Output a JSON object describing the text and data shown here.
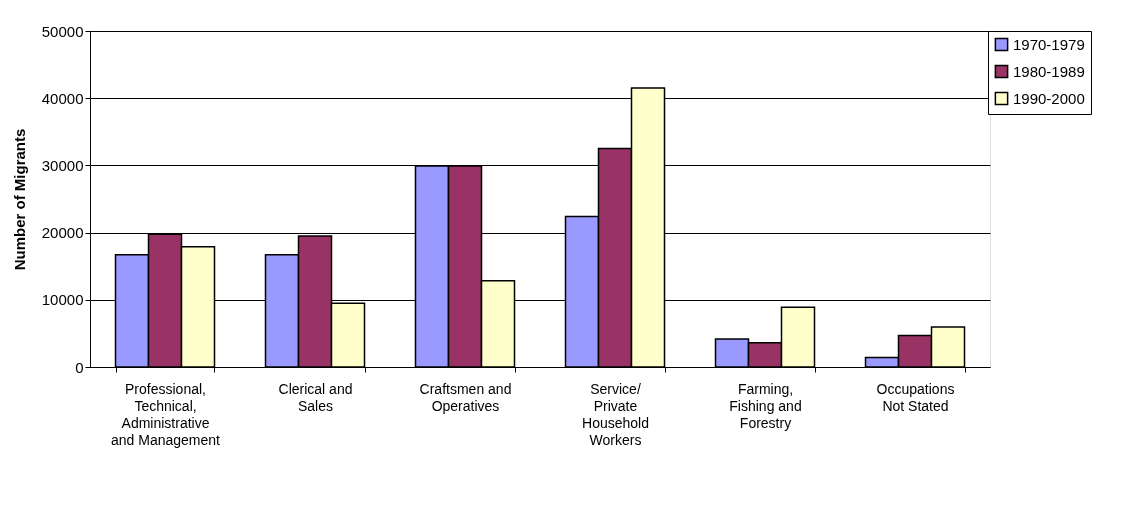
{
  "chart_data": {
    "type": "bar",
    "ylabel": "Number of Migrants",
    "categories": [
      "Professional, Technical, Administrative and Management",
      "Clerical and Sales",
      "Craftsmen and Operatives",
      "Service/ Private Household Workers",
      "Farming, Fishing and Forestry",
      "Occupations Not Stated"
    ],
    "series": [
      {
        "name": "1970-1979",
        "color": "#9999ff",
        "values": [
          16700,
          16700,
          29900,
          22400,
          4150,
          1400
        ]
      },
      {
        "name": "1980-1989",
        "color": "#993366",
        "values": [
          19750,
          19500,
          29900,
          32500,
          3600,
          4700
        ]
      },
      {
        "name": "1990-2000",
        "color": "#ffffcc",
        "values": [
          17900,
          9500,
          12850,
          41500,
          8900,
          5950
        ]
      }
    ],
    "ylim": [
      0,
      50000
    ],
    "yticks": [
      0,
      10000,
      20000,
      30000,
      40000,
      50000
    ],
    "grid": "y",
    "legend": "right"
  }
}
